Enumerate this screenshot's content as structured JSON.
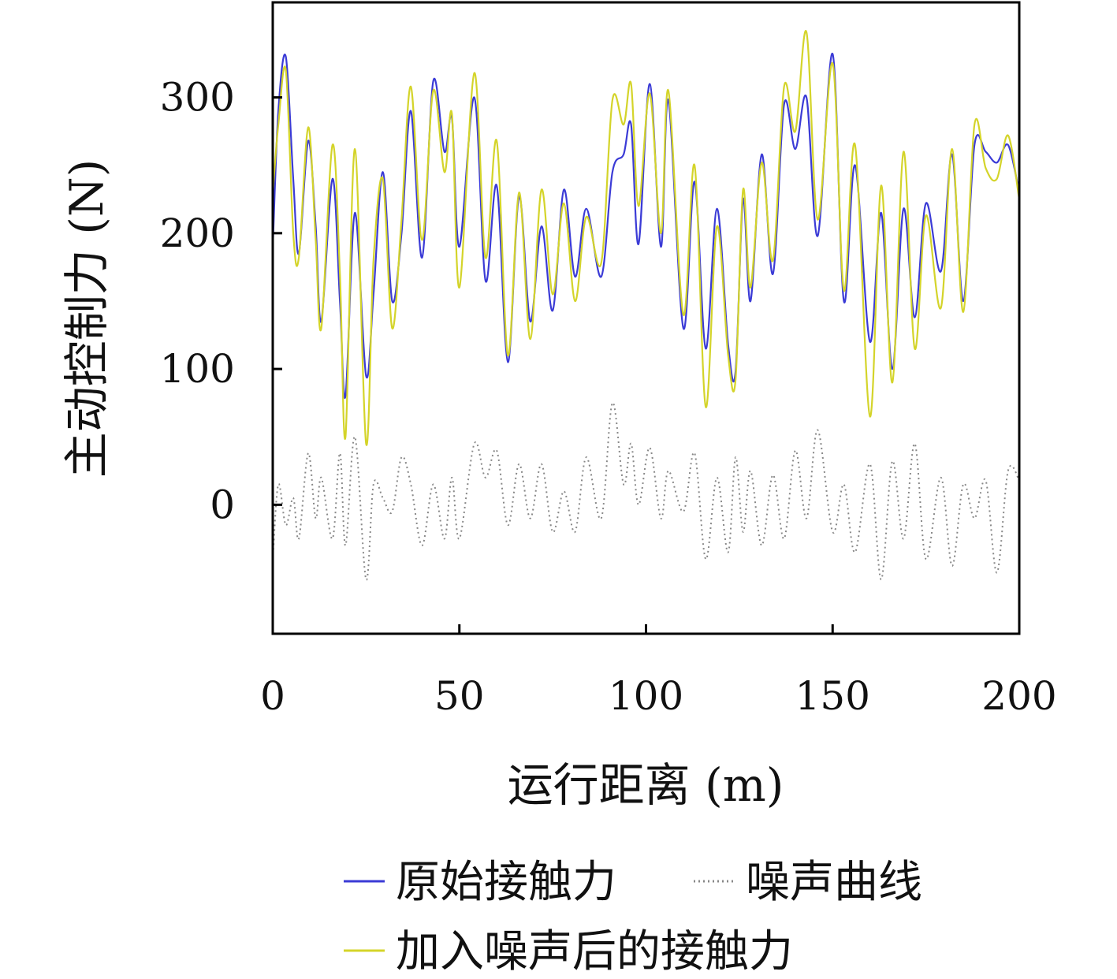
{
  "chart_data": {
    "type": "line",
    "xlabel": "运行距离 (m)",
    "ylabel": "主动控制力 (N)",
    "xlim": [
      0,
      200
    ],
    "ylim": [
      -95,
      370
    ],
    "xticks": [
      0,
      50,
      100,
      150,
      200
    ],
    "yticks": [
      0,
      100,
      200,
      300
    ],
    "grid": false,
    "legend_position": "bottom",
    "series": [
      {
        "name": "原始接触力",
        "color": "#3b3bd6",
        "style": "solid",
        "x": [
          0,
          1.5,
          3.5,
          5.5,
          7,
          9.5,
          11.5,
          13,
          16,
          18,
          19.5,
          22,
          25,
          27,
          29.5,
          32,
          34.5,
          37,
          40,
          43,
          46,
          48,
          50,
          54,
          57,
          60,
          63,
          66,
          69,
          72,
          75,
          78,
          81,
          84,
          88,
          91,
          94,
          96,
          98,
          101,
          104,
          106,
          110,
          113,
          116,
          119,
          122,
          124,
          126,
          128,
          131,
          134,
          137,
          140,
          143,
          146,
          150,
          153,
          156,
          160,
          163,
          166,
          169,
          172,
          175,
          179,
          182,
          185,
          188,
          191,
          194,
          197,
          200
        ],
        "values": [
          190,
          290,
          330,
          240,
          185,
          268,
          205,
          135,
          240,
          150,
          80,
          215,
          95,
          155,
          245,
          150,
          200,
          290,
          182,
          312,
          260,
          285,
          190,
          300,
          165,
          235,
          105,
          227,
          135,
          205,
          143,
          232,
          168,
          218,
          168,
          245,
          258,
          280,
          192,
          310,
          190,
          298,
          130,
          238,
          115,
          218,
          118,
          98,
          225,
          150,
          258,
          170,
          295,
          262,
          300,
          198,
          332,
          150,
          250,
          120,
          215,
          100,
          218,
          138,
          222,
          172,
          258,
          150,
          265,
          260,
          252,
          265,
          230
        ]
      },
      {
        "name": "加入噪声后的接触力",
        "color": "#d4d42a",
        "style": "solid",
        "x": [
          0,
          1.5,
          3.5,
          5.5,
          7,
          9.5,
          11.5,
          13,
          16,
          18,
          19.5,
          22,
          25,
          27,
          29.5,
          32,
          34.5,
          37,
          40,
          43,
          46,
          48,
          50,
          54,
          57,
          60,
          63,
          66,
          69,
          72,
          75,
          78,
          81,
          84,
          88,
          91,
          94,
          96,
          98,
          101,
          104,
          106,
          110,
          113,
          116,
          119,
          122,
          124,
          126,
          128,
          131,
          134,
          137,
          140,
          143,
          146,
          150,
          153,
          156,
          160,
          163,
          166,
          169,
          172,
          175,
          179,
          182,
          185,
          188,
          191,
          194,
          197,
          200
        ],
        "values": [
          230,
          280,
          320,
          200,
          182,
          278,
          195,
          130,
          265,
          170,
          50,
          262,
          45,
          180,
          240,
          130,
          210,
          308,
          195,
          305,
          245,
          288,
          160,
          318,
          182,
          268,
          110,
          230,
          122,
          232,
          155,
          222,
          150,
          212,
          178,
          298,
          280,
          310,
          220,
          303,
          200,
          305,
          140,
          250,
          72,
          205,
          110,
          92,
          232,
          160,
          252,
          180,
          308,
          275,
          348,
          210,
          325,
          158,
          265,
          65,
          235,
          90,
          260,
          115,
          213,
          145,
          262,
          142,
          280,
          248,
          240,
          272,
          225
        ]
      },
      {
        "name": "噪声曲线",
        "color": "#888888",
        "style": "dotted",
        "x": [
          0,
          1.5,
          3.5,
          5.5,
          7,
          9.5,
          11.5,
          13,
          16,
          18,
          19.5,
          22,
          25,
          27,
          29.5,
          32,
          34.5,
          37,
          40,
          43,
          46,
          48,
          50,
          54,
          57,
          60,
          63,
          66,
          69,
          72,
          75,
          78,
          81,
          84,
          88,
          91,
          94,
          96,
          98,
          101,
          104,
          106,
          110,
          113,
          116,
          119,
          122,
          124,
          126,
          128,
          131,
          134,
          137,
          140,
          143,
          146,
          150,
          153,
          156,
          160,
          163,
          166,
          169,
          172,
          175,
          179,
          182,
          185,
          188,
          191,
          194,
          197,
          200
        ],
        "values": [
          -40,
          15,
          -15,
          5,
          -25,
          38,
          -10,
          20,
          -25,
          38,
          -30,
          50,
          -55,
          15,
          5,
          -5,
          35,
          15,
          -30,
          15,
          -25,
          20,
          -25,
          45,
          20,
          40,
          -15,
          30,
          -10,
          30,
          -20,
          10,
          -20,
          35,
          -10,
          75,
          15,
          45,
          0,
          42,
          -10,
          25,
          -5,
          38,
          -40,
          20,
          -35,
          35,
          -20,
          25,
          -30,
          22,
          -25,
          40,
          -10,
          55,
          -20,
          15,
          -35,
          30,
          -55,
          32,
          -25,
          45,
          -40,
          20,
          -45,
          15,
          -10,
          18,
          -50,
          25,
          18
        ]
      }
    ]
  }
}
